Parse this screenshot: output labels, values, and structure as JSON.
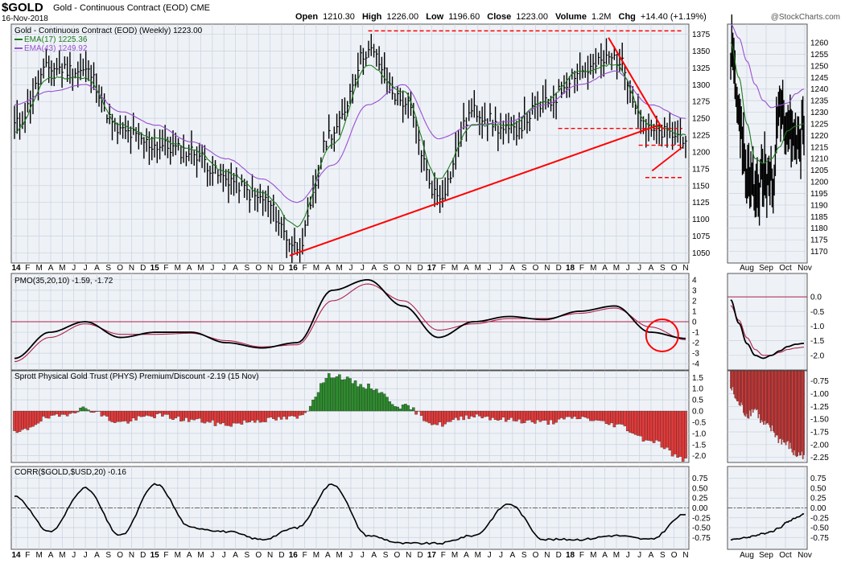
{
  "header": {
    "symbol": "$GOLD",
    "description": "Gold - Continuous Contract (EOD) CME",
    "date": "16-Nov-2018",
    "open_label": "Open",
    "open": "1210.30",
    "high_label": "High",
    "high": "1226.00",
    "low_label": "Low",
    "low": "1196.60",
    "close_label": "Close",
    "close": "1223.00",
    "volume_label": "Volume",
    "volume": "1.2M",
    "chg_label": "Chg",
    "chg": "+14.40 (+1.19%)",
    "watermark": "@StockCharts.com"
  },
  "colors": {
    "background": "#ffffff",
    "panel_bg": "#eef2f7",
    "grid": "#c9d2de",
    "ema_short": "#1f7a1f",
    "ema_long": "#9b4fd1",
    "trendline": "#ff0000",
    "signal": "#b0204a",
    "pos_hist": "#2e8b2e",
    "neg_hist": "#e03a3a"
  },
  "chart_data": [
    {
      "type": "line",
      "title": "Gold - Continuous Contract (EOD) (Weekly) 1223.00",
      "xlabel": "",
      "ylabel": "",
      "ylim": [
        1035,
        1390
      ],
      "y_ticks": [
        "1375",
        "1350",
        "1325",
        "1300",
        "1275",
        "1250",
        "1225",
        "1200",
        "1175",
        "1150",
        "1125",
        "1100",
        "1075",
        "1050"
      ],
      "x_tick_labels": [
        "14",
        "F",
        "M",
        "A",
        "M",
        "J",
        "J",
        "A",
        "S",
        "O",
        "N",
        "D",
        "15",
        "F",
        "M",
        "A",
        "M",
        "J",
        "J",
        "A",
        "S",
        "O",
        "N",
        "D",
        "16",
        "F",
        "M",
        "A",
        "M",
        "J",
        "J",
        "A",
        "S",
        "O",
        "N",
        "D",
        "17",
        "F",
        "M",
        "A",
        "M",
        "J",
        "J",
        "A",
        "S",
        "O",
        "N",
        "D",
        "18",
        "F",
        "M",
        "A",
        "M",
        "J",
        "J",
        "A",
        "S",
        "O",
        "N"
      ],
      "x": [
        "Jan 2014",
        "Apr 2014",
        "Jul 2014",
        "Oct 2014",
        "Jan 2015",
        "Apr 2015",
        "Jul 2015",
        "Oct 2015",
        "Jan 2016",
        "Apr 2016",
        "Jul 2016",
        "Oct 2016",
        "Jan 2017",
        "Apr 2017",
        "Jul 2017",
        "Oct 2017",
        "Jan 2018",
        "Apr 2018",
        "Jul 2018",
        "Nov 2018"
      ],
      "series": [
        {
          "name": "Gold (Weekly)",
          "values": [
            1240,
            1325,
            1320,
            1230,
            1210,
            1200,
            1160,
            1130,
            1060,
            1230,
            1350,
            1275,
            1135,
            1260,
            1230,
            1270,
            1320,
            1340,
            1230,
            1223
          ]
        },
        {
          "name": "EMA(17) 1225.36",
          "values": [
            1230,
            1310,
            1310,
            1240,
            1220,
            1205,
            1170,
            1140,
            1090,
            1210,
            1330,
            1290,
            1160,
            1240,
            1240,
            1275,
            1320,
            1330,
            1240,
            1225
          ]
        },
        {
          "name": "EMA(43) 1249.92",
          "values": [
            1270,
            1290,
            1300,
            1260,
            1240,
            1215,
            1190,
            1160,
            1125,
            1180,
            1270,
            1300,
            1220,
            1240,
            1245,
            1270,
            1300,
            1320,
            1270,
            1250
          ]
        }
      ],
      "annotations": {
        "resistance_top": 1380,
        "resistance_mid": 1235,
        "support_mid": 1210,
        "support_low": 1162,
        "rising_trendline": [
          [
            "Dec 2015",
            1046
          ],
          [
            "Sep 2018",
            1240
          ]
        ],
        "falling_trendline": [
          [
            "Apr 2018",
            1370
          ],
          [
            "Sep 2018",
            1235
          ]
        ]
      },
      "grid": true
    },
    {
      "type": "line",
      "title": "PMO(35,20,10) -1.59, -1.72",
      "ylim": [
        -4.6,
        4.6
      ],
      "y_ticks": [
        "4",
        "3",
        "2",
        "1",
        "0",
        "-1",
        "-2",
        "-3",
        "-4"
      ],
      "series": [
        {
          "name": "PMO",
          "values": [
            -3.5,
            -1,
            0,
            -1.5,
            -1,
            -1,
            -2,
            -2.5,
            -2,
            3,
            4,
            1.5,
            -1.5,
            0,
            0.5,
            0.2,
            1,
            1.5,
            -1,
            -1.59
          ]
        },
        {
          "name": "Signal",
          "values": [
            -3.8,
            -1.5,
            -0.2,
            -1.2,
            -1.2,
            -1.1,
            -1.8,
            -2.4,
            -2.2,
            2,
            3.6,
            2,
            -0.8,
            -0.2,
            0.3,
            0.3,
            0.8,
            1.3,
            -0.5,
            -1.72
          ]
        }
      ],
      "grid": true
    },
    {
      "type": "bar",
      "title": "Sprott Physical Gold Trust (PHYS) Premium/Discount -2.19 (15 Nov)",
      "ylim": [
        -2.3,
        1.8
      ],
      "y_ticks": [
        "1.5",
        "1.0",
        "0.5",
        "0.0",
        "-0.5",
        "-1.0",
        "-1.5",
        "-2.0"
      ],
      "values": [
        -1.0,
        -0.3,
        0.1,
        -0.5,
        -0.2,
        -0.4,
        -0.6,
        -0.4,
        -0.3,
        1.6,
        1.1,
        0.2,
        -0.6,
        -0.2,
        -0.4,
        -0.5,
        -0.3,
        -0.6,
        -1.3,
        -2.19
      ],
      "grid": true
    },
    {
      "type": "line",
      "title": "CORR($GOLD,$USD,20) -0.16",
      "ylim": [
        -1.05,
        1.05
      ],
      "y_ticks": [
        "0.75",
        "0.50",
        "0.25",
        "0.00",
        "-0.25",
        "-0.50",
        "-0.75"
      ],
      "series": [
        {
          "name": "CORR",
          "values": [
            0.3,
            -0.6,
            0.5,
            -0.7,
            0.6,
            -0.5,
            -0.6,
            -0.8,
            -0.5,
            0.6,
            -0.7,
            -0.9,
            -0.9,
            -0.7,
            0.1,
            -0.8,
            -0.8,
            -0.7,
            -0.8,
            -0.16
          ]
        }
      ],
      "grid": true
    }
  ],
  "daily_panel": {
    "x_tick_labels": [
      "Aug",
      "Sep",
      "Oct",
      "Nov"
    ],
    "price_y_ticks": [
      "1260",
      "1255",
      "1250",
      "1245",
      "1240",
      "1235",
      "1230",
      "1225",
      "1220",
      "1215",
      "1210",
      "1205",
      "1200",
      "1195",
      "1190",
      "1185",
      "1180",
      "1175",
      "1170"
    ],
    "pmo_y_ticks": [
      "0.0",
      "-0.5",
      "-1.0",
      "-1.5",
      "-2.0"
    ],
    "phys_y_ticks": [
      "-0.75",
      "-1.00",
      "-1.25",
      "-1.50",
      "-1.75",
      "-2.00",
      "-2.25"
    ],
    "corr_y_ticks": [
      "0.75",
      "0.50",
      "0.25",
      "0.00",
      "-0.25",
      "-0.50",
      "-0.75"
    ]
  }
}
